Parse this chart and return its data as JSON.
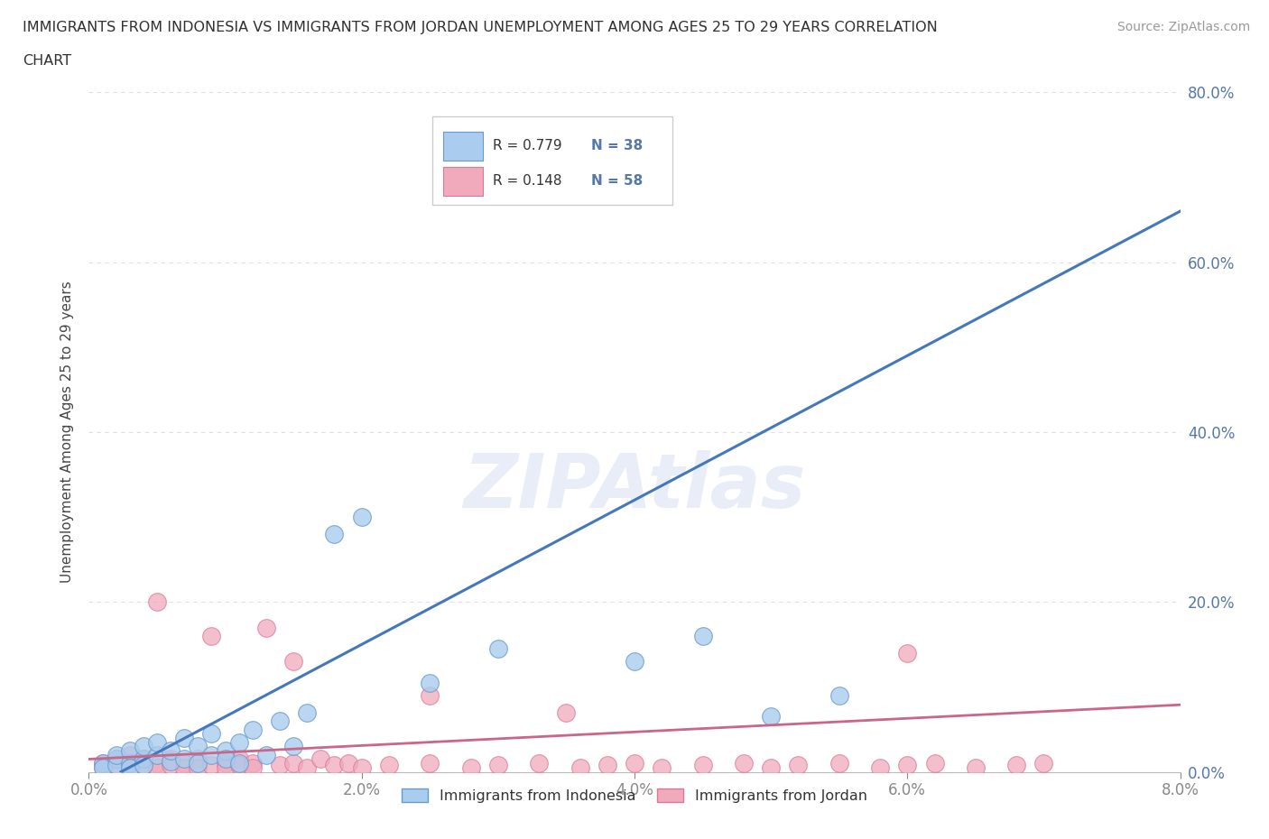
{
  "title_line1": "IMMIGRANTS FROM INDONESIA VS IMMIGRANTS FROM JORDAN UNEMPLOYMENT AMONG AGES 25 TO 29 YEARS CORRELATION",
  "title_line2": "CHART",
  "source_text": "Source: ZipAtlas.com",
  "ylabel": "Unemployment Among Ages 25 to 29 years",
  "xlim": [
    0.0,
    0.08
  ],
  "ylim": [
    0.0,
    0.8
  ],
  "xticks": [
    0.0,
    0.02,
    0.04,
    0.06,
    0.08
  ],
  "yticks": [
    0.0,
    0.2,
    0.4,
    0.6,
    0.8
  ],
  "indonesia_color": "#aaccee",
  "jordan_color": "#f0aabb",
  "indonesia_edge_color": "#6699cc",
  "jordan_edge_color": "#dd7799",
  "indonesia_line_color": "#4477bb",
  "jordan_line_color": "#cc6688",
  "R_indonesia": 0.779,
  "N_indonesia": 38,
  "R_jordan": 0.148,
  "N_jordan": 58,
  "indonesia_scatter_x": [
    0.001,
    0.001,
    0.002,
    0.002,
    0.002,
    0.003,
    0.003,
    0.003,
    0.004,
    0.004,
    0.004,
    0.005,
    0.005,
    0.006,
    0.006,
    0.007,
    0.007,
    0.008,
    0.008,
    0.009,
    0.009,
    0.01,
    0.01,
    0.011,
    0.011,
    0.012,
    0.013,
    0.014,
    0.015,
    0.016,
    0.018,
    0.02,
    0.025,
    0.03,
    0.04,
    0.045,
    0.05,
    0.055
  ],
  "indonesia_scatter_y": [
    0.01,
    0.005,
    0.015,
    0.008,
    0.02,
    0.01,
    0.025,
    0.005,
    0.015,
    0.03,
    0.008,
    0.02,
    0.035,
    0.012,
    0.025,
    0.015,
    0.04,
    0.01,
    0.03,
    0.02,
    0.045,
    0.025,
    0.015,
    0.035,
    0.01,
    0.05,
    0.02,
    0.06,
    0.03,
    0.07,
    0.28,
    0.3,
    0.105,
    0.145,
    0.13,
    0.16,
    0.065,
    0.09
  ],
  "jordan_scatter_x": [
    0.001,
    0.001,
    0.002,
    0.002,
    0.003,
    0.003,
    0.003,
    0.004,
    0.004,
    0.005,
    0.005,
    0.005,
    0.006,
    0.006,
    0.007,
    0.007,
    0.008,
    0.008,
    0.009,
    0.009,
    0.01,
    0.01,
    0.011,
    0.011,
    0.012,
    0.012,
    0.013,
    0.014,
    0.015,
    0.016,
    0.017,
    0.018,
    0.019,
    0.02,
    0.022,
    0.025,
    0.028,
    0.03,
    0.033,
    0.036,
    0.038,
    0.04,
    0.042,
    0.045,
    0.048,
    0.05,
    0.052,
    0.055,
    0.058,
    0.06,
    0.062,
    0.065,
    0.068,
    0.07,
    0.06,
    0.015,
    0.025,
    0.035
  ],
  "jordan_scatter_y": [
    0.01,
    0.005,
    0.015,
    0.005,
    0.02,
    0.01,
    0.005,
    0.015,
    0.008,
    0.2,
    0.01,
    0.005,
    0.015,
    0.008,
    0.01,
    0.005,
    0.015,
    0.005,
    0.16,
    0.008,
    0.01,
    0.005,
    0.015,
    0.008,
    0.01,
    0.005,
    0.17,
    0.008,
    0.01,
    0.005,
    0.015,
    0.008,
    0.01,
    0.005,
    0.008,
    0.01,
    0.005,
    0.008,
    0.01,
    0.005,
    0.008,
    0.01,
    0.005,
    0.008,
    0.01,
    0.005,
    0.008,
    0.01,
    0.005,
    0.008,
    0.01,
    0.005,
    0.008,
    0.01,
    0.14,
    0.13,
    0.09,
    0.07
  ],
  "watermark_text": "ZIPAtlas",
  "background_color": "#ffffff",
  "grid_color": "#ddddee",
  "title_color": "#303030",
  "axis_tick_color": "#5577aa",
  "ylabel_color": "#444444",
  "source_color": "#999999"
}
